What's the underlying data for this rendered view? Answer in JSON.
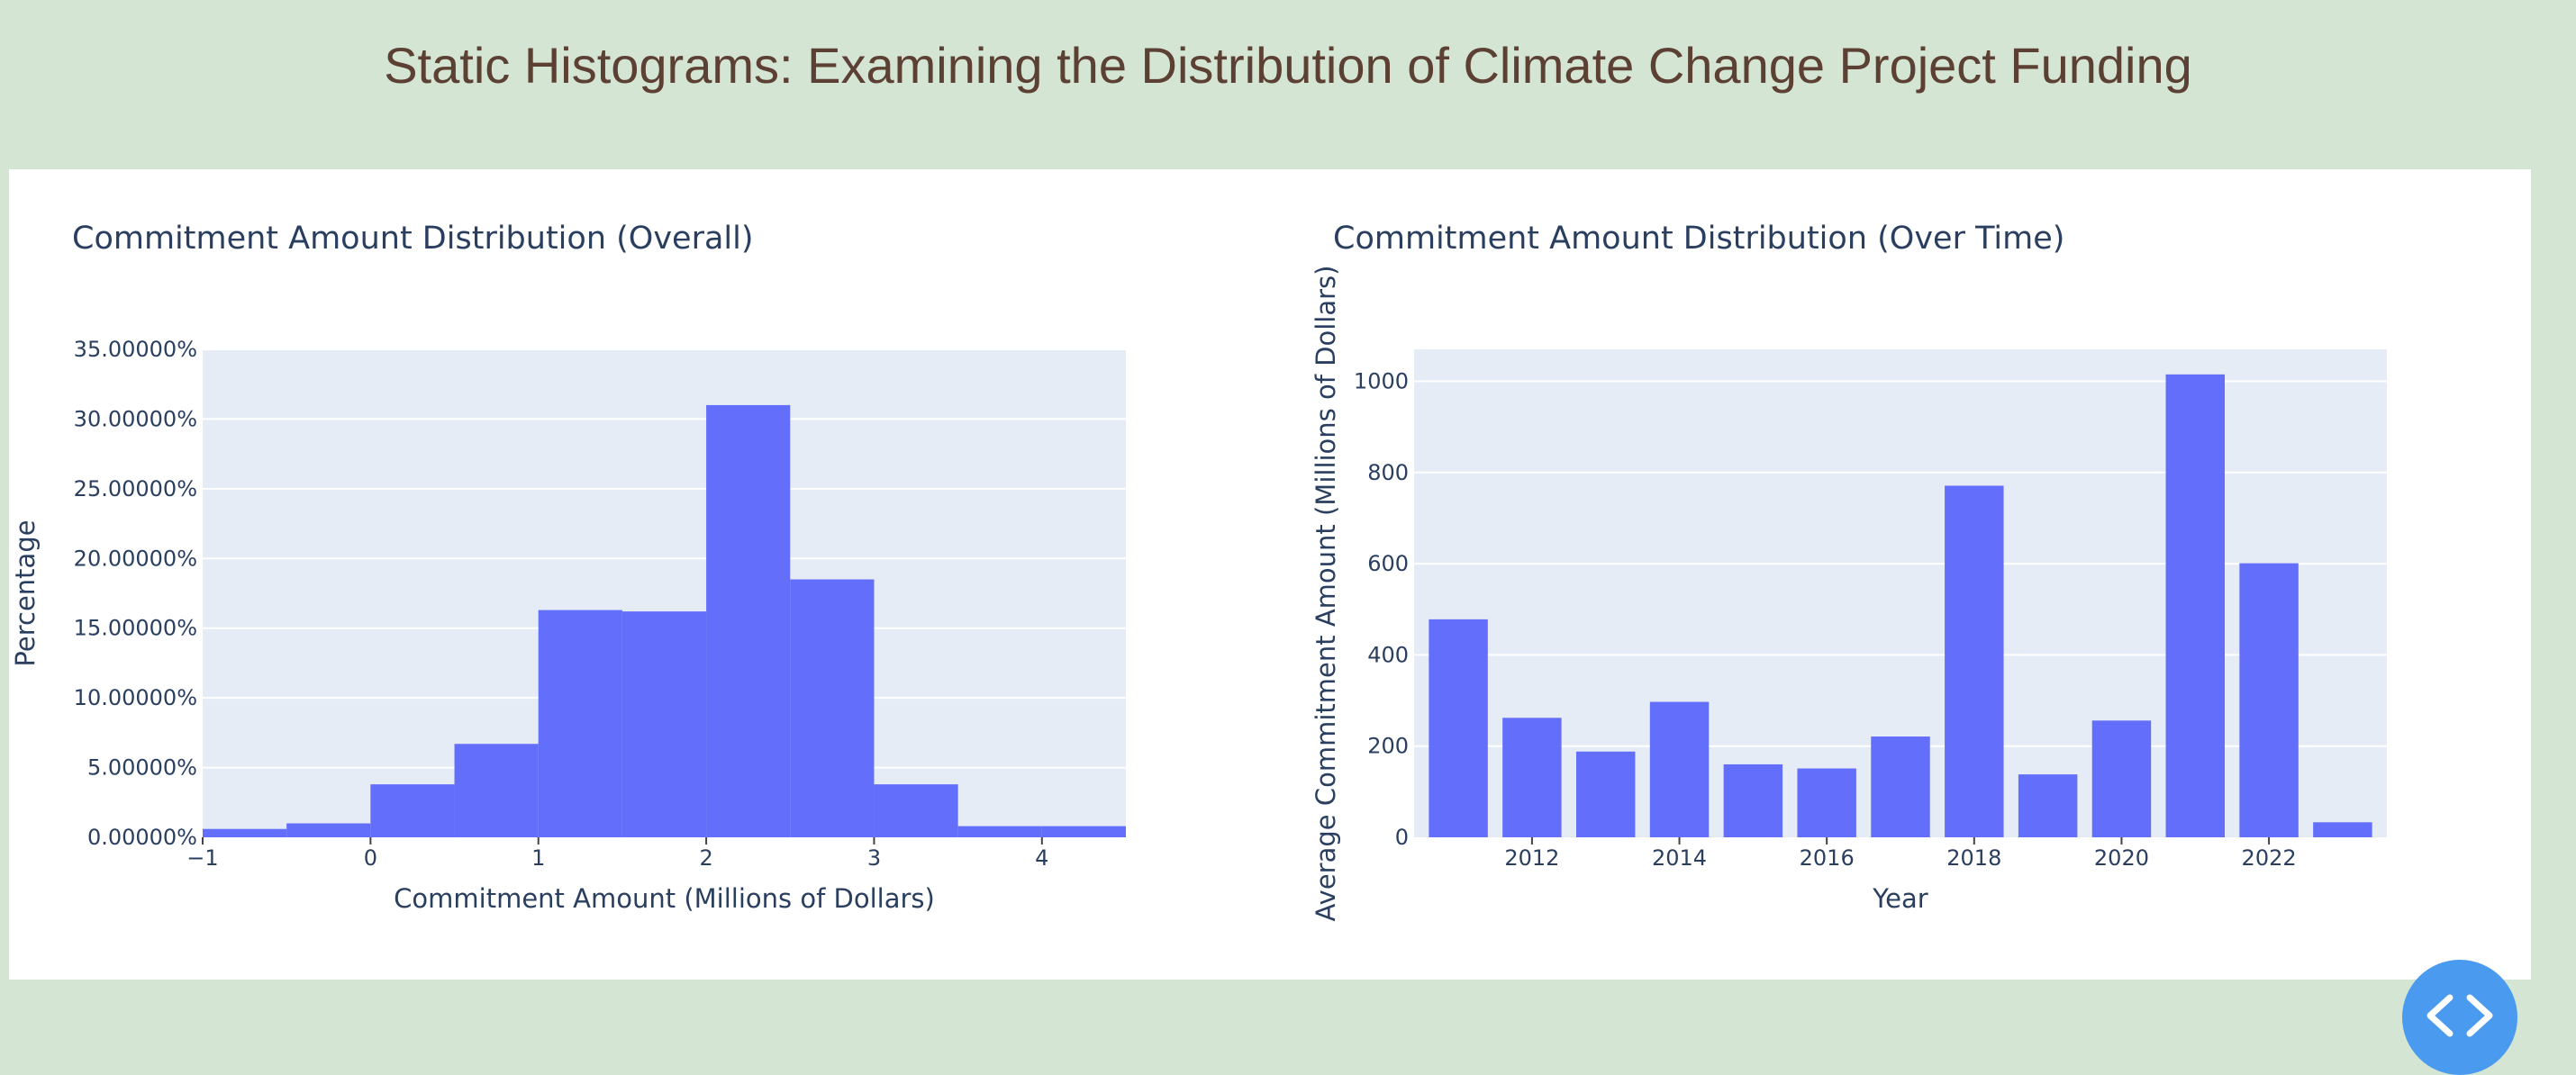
{
  "page": {
    "title": "Static Histograms: Examining the Distribution of Climate Change Project Funding",
    "background_color": "#d5e5d4",
    "title_color": "#5c4033"
  },
  "code_toggle": {
    "icon": "code-icon",
    "color": "#4a9af0"
  },
  "chart_data": [
    {
      "type": "bar",
      "title": "Commitment Amount Distribution (Overall)",
      "xlabel": "Commitment Amount (Millions of Dollars)",
      "ylabel": "Percentage",
      "bar_color": "#636efa",
      "plot_bgcolor": "#e5ecf6",
      "grid": true,
      "xlim": [
        -1,
        4.5
      ],
      "ylim": [
        0,
        35
      ],
      "x_ticks": [
        -1,
        0,
        1,
        2,
        3,
        4
      ],
      "x_tick_labels": [
        "−1",
        "0",
        "1",
        "2",
        "3",
        "4"
      ],
      "y_ticks": [
        0,
        5,
        10,
        15,
        20,
        25,
        30,
        35
      ],
      "y_tick_labels": [
        "0.00000%",
        "5.00000%",
        "10.00000%",
        "15.00000%",
        "20.00000%",
        "25.00000%",
        "30.00000%",
        "35.00000%"
      ],
      "bins": [
        {
          "x0": -1.0,
          "x1": -0.5,
          "value": 0.6
        },
        {
          "x0": -0.5,
          "x1": 0.0,
          "value": 1.0
        },
        {
          "x0": 0.0,
          "x1": 0.5,
          "value": 3.8
        },
        {
          "x0": 0.5,
          "x1": 1.0,
          "value": 6.7
        },
        {
          "x0": 1.0,
          "x1": 1.5,
          "value": 16.3
        },
        {
          "x0": 1.5,
          "x1": 2.0,
          "value": 16.2
        },
        {
          "x0": 2.0,
          "x1": 2.5,
          "value": 31.0
        },
        {
          "x0": 2.5,
          "x1": 3.0,
          "value": 18.5
        },
        {
          "x0": 3.0,
          "x1": 3.5,
          "value": 3.8
        },
        {
          "x0": 3.5,
          "x1": 4.0,
          "value": 0.8
        },
        {
          "x0": 4.0,
          "x1": 4.5,
          "value": 0.8
        }
      ]
    },
    {
      "type": "bar",
      "title": "Commitment Amount Distribution (Over Time)",
      "xlabel": "Year",
      "ylabel": "Average Commitment Amount (Millions of Dollars)",
      "bar_color": "#636efa",
      "plot_bgcolor": "#e5ecf6",
      "grid": true,
      "xlim": [
        2010.4,
        2023.6
      ],
      "ylim": [
        0,
        1070
      ],
      "x_ticks": [
        2012,
        2014,
        2016,
        2018,
        2020,
        2022
      ],
      "x_tick_labels": [
        "2012",
        "2014",
        "2016",
        "2018",
        "2020",
        "2022"
      ],
      "y_ticks": [
        0,
        200,
        400,
        600,
        800,
        1000
      ],
      "y_tick_labels": [
        "0",
        "200",
        "400",
        "600",
        "800",
        "1000"
      ],
      "categories": [
        2011,
        2012,
        2013,
        2014,
        2015,
        2016,
        2017,
        2018,
        2019,
        2020,
        2021,
        2022,
        2023
      ],
      "values": [
        478,
        262,
        188,
        297,
        160,
        151,
        221,
        771,
        138,
        256,
        1015,
        601,
        33
      ]
    }
  ]
}
